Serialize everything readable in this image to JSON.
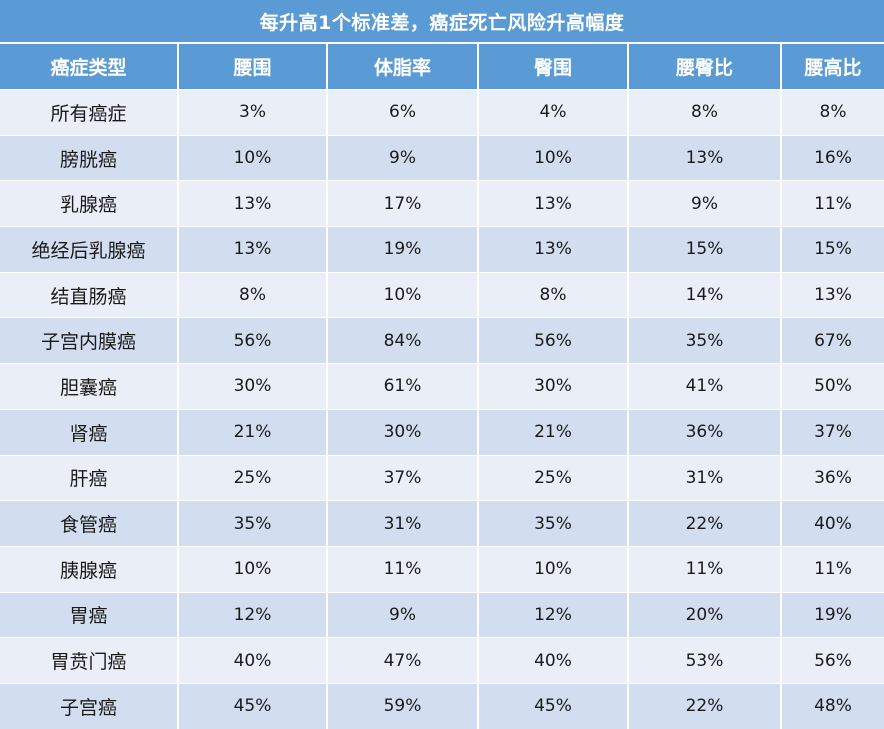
{
  "title": "每升高1个标准差，癌症死亡风险升高幅度",
  "headers": [
    "癌症类型",
    "腰围",
    "体脂率",
    "臀围",
    "腰臀比",
    "腰高比"
  ],
  "rows": [
    [
      "所有癌症",
      "3%",
      "6%",
      "4%",
      "8%",
      "8%"
    ],
    [
      "膀胱癌",
      "10%",
      "9%",
      "10%",
      "13%",
      "16%"
    ],
    [
      "乳腺癌",
      "13%",
      "17%",
      "13%",
      "9%",
      "11%"
    ],
    [
      "绝经后乳腺癌",
      "13%",
      "19%",
      "13%",
      "15%",
      "15%"
    ],
    [
      "结直肠癌",
      "8%",
      "10%",
      "8%",
      "14%",
      "13%"
    ],
    [
      "子宫内膜癌",
      "56%",
      "84%",
      "56%",
      "35%",
      "67%"
    ],
    [
      "胆囊癌",
      "30%",
      "61%",
      "30%",
      "41%",
      "50%"
    ],
    [
      "肾癌",
      "21%",
      "30%",
      "21%",
      "36%",
      "37%"
    ],
    [
      "肝癌",
      "25%",
      "37%",
      "25%",
      "31%",
      "36%"
    ],
    [
      "食管癌",
      "35%",
      "31%",
      "35%",
      "22%",
      "40%"
    ],
    [
      "胰腺癌",
      "10%",
      "11%",
      "10%",
      "11%",
      "11%"
    ],
    [
      "胃癌",
      "12%",
      "9%",
      "12%",
      "20%",
      "19%"
    ],
    [
      "胃贲门癌",
      "40%",
      "47%",
      "40%",
      "53%",
      "56%"
    ],
    [
      "子宫癌",
      "45%",
      "59%",
      "45%",
      "22%",
      "48%"
    ]
  ]
}
